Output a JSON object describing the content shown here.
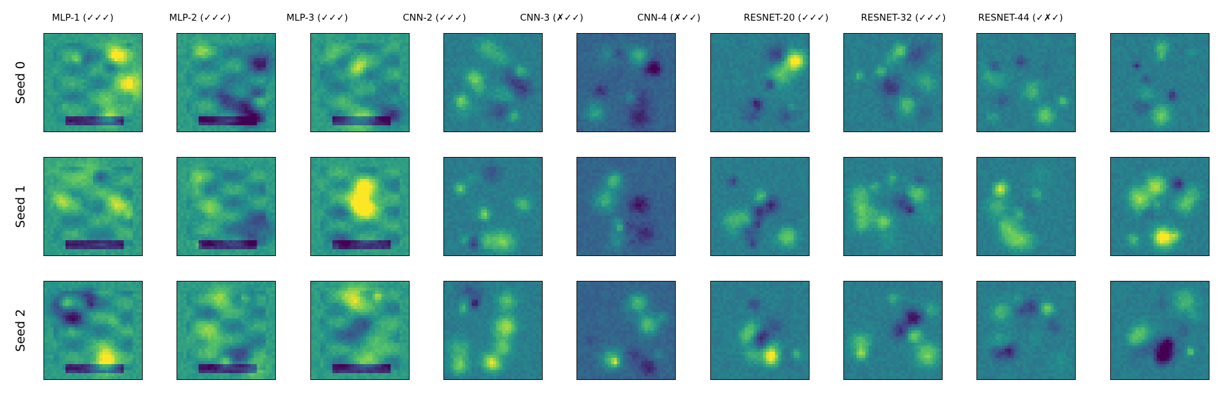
{
  "columns": [
    "MLP-1 (✓✓✓)",
    "MLP-2 (✓✓✓)",
    "MLP-3 (✓✓✓)",
    "CNN-2 (✓✓✓)",
    "CNN-3 (✗✓✓)",
    "CNN-4 (✗✓✓)",
    "RESNET-20 (✓✓✓)",
    "RESNET-32 (✓✓✓)",
    "RESNET-44 (✓✗✓)"
  ],
  "rows": [
    "Seed 0",
    "Seed 1",
    "Seed 2"
  ],
  "colormap": "viridis",
  "panel_background": "#2a9a8a",
  "border_color": "#111111"
}
